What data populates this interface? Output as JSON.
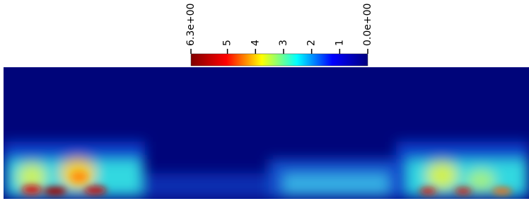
{
  "chart_data": {
    "type": "heatmap",
    "xlim": [
      6.3,
      0
    ],
    "xticks": [
      {
        "value": 6.3,
        "label": "6.3e+00"
      },
      5,
      4,
      3,
      2,
      1,
      {
        "value": 0,
        "label": "0.0e+00"
      }
    ],
    "colormap": [
      "#7f0000",
      "#ff0000",
      "#ffff00",
      "#00ffff",
      "#0000ff",
      "#00007f"
    ]
  }
}
